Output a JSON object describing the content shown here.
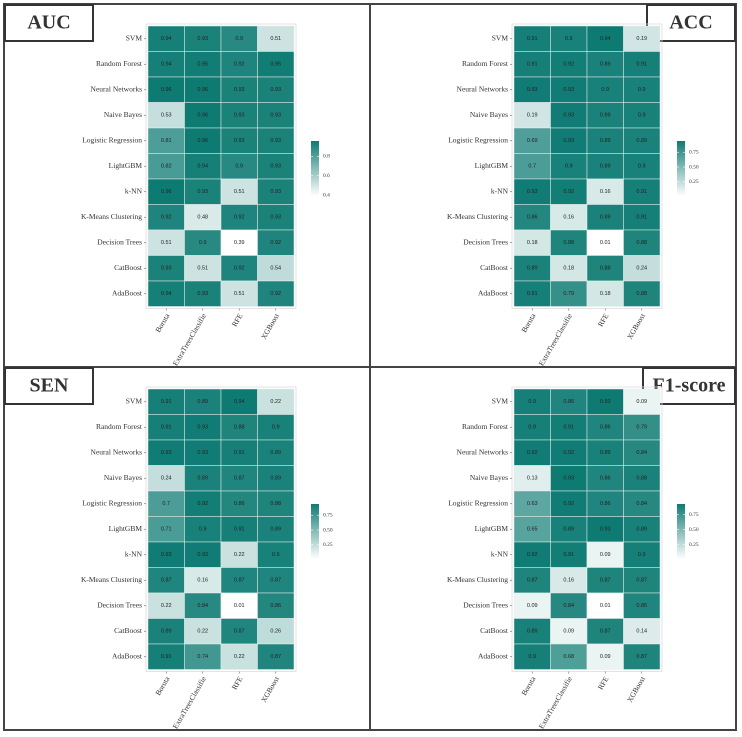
{
  "chart_data": [
    {
      "type": "heatmap",
      "title": "AUC",
      "title_position": "left",
      "y_categories": [
        "SVM",
        "Random Forest",
        "Neural Networks",
        "Naive Bayes",
        "Logistic Regression",
        "LightGBM",
        "k-NN",
        "K-Means Clustering",
        "Decision Trees",
        "CatBoost",
        "AdaBoost"
      ],
      "x_categories": [
        "Boruta",
        "ExtraTreesClassifie",
        "RFE",
        "XGBoost"
      ],
      "values": [
        [
          0.94,
          0.93,
          0.9,
          0.51
        ],
        [
          0.94,
          0.95,
          0.92,
          0.95
        ],
        [
          0.96,
          0.96,
          0.93,
          0.93
        ],
        [
          0.53,
          0.96,
          0.93,
          0.93
        ],
        [
          0.81,
          0.96,
          0.93,
          0.93
        ],
        [
          0.82,
          0.94,
          0.9,
          0.93
        ],
        [
          0.96,
          0.93,
          0.51,
          0.93
        ],
        [
          0.92,
          0.48,
          0.92,
          0.93
        ],
        [
          0.51,
          0.9,
          0.39,
          0.92
        ],
        [
          0.93,
          0.51,
          0.92,
          0.54
        ],
        [
          0.94,
          0.93,
          0.51,
          0.92
        ]
      ],
      "zlim": [
        0.39,
        0.96
      ],
      "zticks": [
        0.4,
        0.6,
        0.8
      ],
      "color_low": "#ffffff",
      "color_high": "#0e7b73"
    },
    {
      "type": "heatmap",
      "title": "ACC",
      "title_position": "right",
      "y_categories": [
        "SVM",
        "Random Forest",
        "Neural Networks",
        "Naive Bayes",
        "Logistic Regression",
        "LightGBM",
        "k-NN",
        "K-Means Clustering",
        "Decision Trees",
        "CatBoost",
        "AdaBoost"
      ],
      "x_categories": [
        "Boruta",
        "ExtraTreesClassifie",
        "RFE",
        "XGBoost"
      ],
      "values": [
        [
          0.91,
          0.9,
          0.94,
          0.19
        ],
        [
          0.91,
          0.92,
          0.89,
          0.91
        ],
        [
          0.93,
          0.93,
          0.9,
          0.9
        ],
        [
          0.19,
          0.93,
          0.89,
          0.9
        ],
        [
          0.69,
          0.93,
          0.89,
          0.89
        ],
        [
          0.7,
          0.9,
          0.89,
          0.9
        ],
        [
          0.93,
          0.92,
          0.16,
          0.91
        ],
        [
          0.86,
          0.16,
          0.89,
          0.91
        ],
        [
          0.18,
          0.88,
          0.01,
          0.88
        ],
        [
          0.89,
          0.18,
          0.88,
          0.24
        ],
        [
          0.91,
          0.79,
          0.18,
          0.88
        ]
      ],
      "zlim": [
        0.01,
        0.94
      ],
      "zticks": [
        0.25,
        {
          "value": 0.5,
          "label": "0.50"
        },
        0.75
      ],
      "color_low": "#ffffff",
      "color_high": "#0e7b73"
    },
    {
      "type": "heatmap",
      "title": "SEN",
      "title_position": "left",
      "y_categories": [
        "SVM",
        "Random Forest",
        "Neural Networks",
        "Naive Bayes",
        "Logistic Regression",
        "LightGBM",
        "k-NN",
        "K-Means Clustering",
        "Decision Trees",
        "CatBoost",
        "AdaBoost"
      ],
      "x_categories": [
        "Boruta",
        "ExtraTreesClassifie",
        "RFE",
        "XGBoost"
      ],
      "values": [
        [
          0.91,
          0.89,
          0.94,
          0.22
        ],
        [
          0.91,
          0.93,
          0.88,
          0.9
        ],
        [
          0.93,
          0.93,
          0.91,
          0.89
        ],
        [
          0.24,
          0.89,
          0.87,
          0.89
        ],
        [
          0.7,
          0.92,
          0.86,
          0.88
        ],
        [
          0.71,
          0.9,
          0.91,
          0.89
        ],
        [
          0.93,
          0.93,
          0.22,
          0.9
        ],
        [
          0.87,
          0.16,
          0.87,
          0.87
        ],
        [
          0.22,
          0.84,
          0.01,
          0.86
        ],
        [
          0.89,
          0.22,
          0.87,
          0.26
        ],
        [
          0.91,
          0.74,
          0.22,
          0.87
        ]
      ],
      "zlim": [
        0.01,
        0.94
      ],
      "zticks": [
        0.25,
        {
          "value": 0.5,
          "label": "0.50"
        },
        0.75
      ],
      "color_low": "#ffffff",
      "color_high": "#0e7b73"
    },
    {
      "type": "heatmap",
      "title": "F1-score",
      "title_position": "right",
      "y_categories": [
        "SVM",
        "Random Forest",
        "Neural Networks",
        "Naive Bayes",
        "Logistic Regression",
        "LightGBM",
        "k-NN",
        "K-Means Clustering",
        "Decision Trees",
        "CatBoost",
        "AdaBoost"
      ],
      "x_categories": [
        "Boruta",
        "ExtraTreesClassifie",
        "RFE",
        "XGBoost"
      ],
      "values": [
        [
          0.9,
          0.86,
          0.93,
          0.09
        ],
        [
          0.9,
          0.91,
          0.86,
          0.79
        ],
        [
          0.92,
          0.92,
          0.89,
          0.84
        ],
        [
          0.13,
          0.93,
          0.86,
          0.88
        ],
        [
          0.63,
          0.92,
          0.86,
          0.84
        ],
        [
          0.65,
          0.89,
          0.93,
          0.89
        ],
        [
          0.92,
          0.91,
          0.09,
          0.9
        ],
        [
          0.87,
          0.16,
          0.87,
          0.87
        ],
        [
          0.09,
          0.84,
          0.01,
          0.86
        ],
        [
          0.89,
          0.09,
          0.87,
          0.14
        ],
        [
          0.9,
          0.68,
          0.09,
          0.87
        ]
      ],
      "zlim": [
        0.01,
        0.93
      ],
      "zticks": [
        0.25,
        {
          "value": 0.5,
          "label": "0.50"
        },
        0.75
      ],
      "color_low": "#ffffff",
      "color_high": "#0e7b73"
    }
  ]
}
